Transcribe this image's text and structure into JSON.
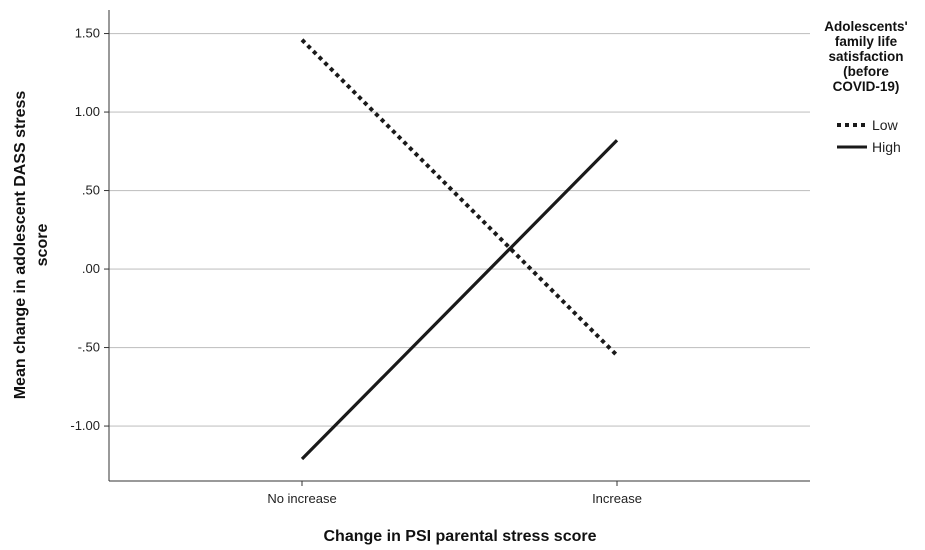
{
  "chart_data": {
    "type": "line",
    "xlabel": "Change in PSI parental stress score",
    "ylabel": "Mean change in adolescent DASS stress score",
    "categories": [
      "No increase",
      "Increase"
    ],
    "ylim": [
      -1.35,
      1.65
    ],
    "yticks": [
      {
        "value": 1.5,
        "label": "1.50"
      },
      {
        "value": 1.0,
        "label": "1.00"
      },
      {
        "value": 0.5,
        "label": ".50"
      },
      {
        "value": 0.0,
        "label": ".00"
      },
      {
        "value": -0.5,
        "label": "-.50"
      },
      {
        "value": -1.0,
        "label": "-1.00"
      }
    ],
    "grid": true,
    "legend": {
      "title": "Adolescents' family life satisfaction (before COVID-19)",
      "title_lines": [
        "Adolescents'",
        "family life",
        "satisfaction",
        "(before",
        "COVID-19)"
      ],
      "placement": "right"
    },
    "series": [
      {
        "name": "Low",
        "style": "dotted",
        "color": "#1a1a1a",
        "values": [
          1.46,
          -0.55
        ]
      },
      {
        "name": "High",
        "style": "solid",
        "color": "#1a1a1a",
        "values": [
          -1.21,
          0.82
        ]
      }
    ]
  }
}
